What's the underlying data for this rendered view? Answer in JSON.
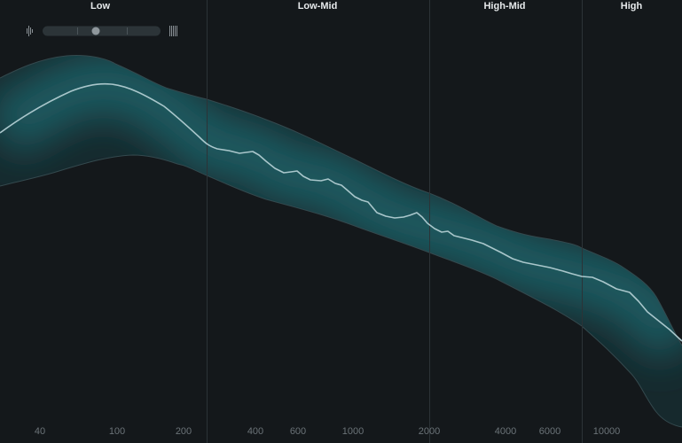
{
  "bands": [
    "Low",
    "Low-Mid",
    "High-Mid",
    "High"
  ],
  "frequency_labels": [
    "40",
    "100",
    "200",
    "400",
    "600",
    "1000",
    "2000",
    "4000",
    "6000",
    "10000"
  ]
}
